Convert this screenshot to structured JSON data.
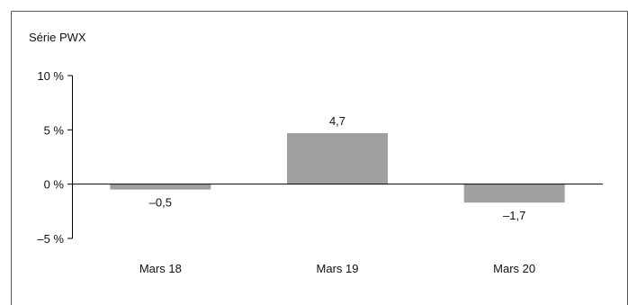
{
  "chart_data": {
    "type": "bar",
    "title": "Série PWX",
    "categories": [
      "Mars 18",
      "Mars 19",
      "Mars 20"
    ],
    "values": [
      -0.5,
      4.7,
      -1.7
    ],
    "value_labels": [
      "–0,5",
      "4,7",
      "–1,7"
    ],
    "ylim": [
      -5,
      10
    ],
    "yticks": [
      10,
      5,
      0,
      -5
    ],
    "ytick_labels": [
      "10 %",
      "5 %",
      "0 %",
      "–5 %"
    ],
    "xlabel": "",
    "ylabel": "",
    "grid": false,
    "bar_color": "#a0a0a0",
    "axis_color": "#000000"
  }
}
